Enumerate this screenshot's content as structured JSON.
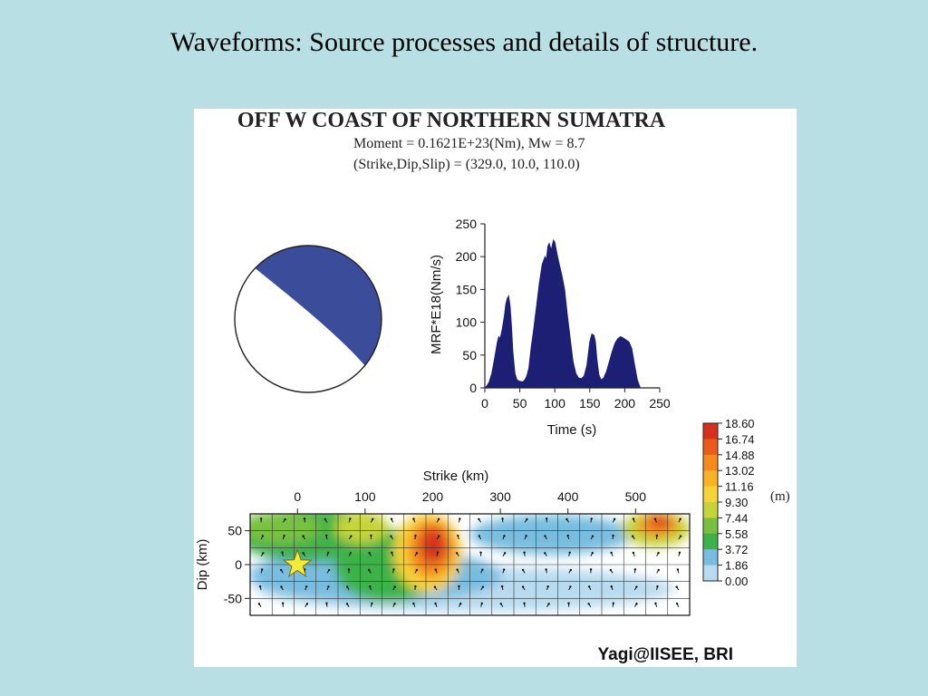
{
  "slide": {
    "title": "Waveforms:   Source processes and details of structure."
  },
  "figure": {
    "title": "OFF W COAST OF NORTHERN SUMATRA",
    "moment_line": "Moment = 0.1621E+23(Nm), Mw = 8.7",
    "mechanism_line": "(Strike,Dip,Slip) = (329.0, 10.0,  110.0)",
    "credit": "Yagi@IISEE, BRI",
    "colors": {
      "mechanism": "#3b4c9a",
      "mrf_fill": "#1c1f73"
    }
  },
  "chart_data": [
    {
      "type": "area",
      "name": "moment-rate-function",
      "xlabel": "Time (s)",
      "ylabel": "MRF*E18(Nm/s)",
      "xlim": [
        0,
        250
      ],
      "ylim": [
        0,
        250
      ],
      "xticks": [
        0,
        50,
        100,
        150,
        200,
        250
      ],
      "yticks": [
        0,
        50,
        100,
        150,
        200,
        250
      ],
      "x": [
        0,
        3,
        6,
        10,
        14,
        18,
        20,
        22,
        25,
        28,
        30,
        32,
        34,
        36,
        38,
        40,
        43,
        46,
        50,
        54,
        57,
        60,
        63,
        66,
        70,
        74,
        78,
        82,
        86,
        88,
        90,
        92,
        95,
        98,
        100,
        103,
        106,
        110,
        114,
        118,
        122,
        126,
        130,
        134,
        138,
        142,
        146,
        150,
        153,
        156,
        158,
        160,
        163,
        166,
        170,
        174,
        178,
        182,
        186,
        190,
        194,
        198,
        202,
        206,
        210,
        214,
        218,
        222
      ],
      "y": [
        0,
        3,
        8,
        22,
        45,
        70,
        78,
        75,
        90,
        110,
        128,
        136,
        140,
        125,
        95,
        55,
        22,
        12,
        10,
        9,
        12,
        18,
        30,
        60,
        90,
        125,
        160,
        188,
        200,
        195,
        215,
        220,
        210,
        225,
        222,
        205,
        190,
        172,
        150,
        110,
        75,
        40,
        22,
        15,
        14,
        18,
        35,
        70,
        82,
        80,
        70,
        45,
        20,
        12,
        15,
        25,
        40,
        55,
        68,
        75,
        78,
        76,
        73,
        70,
        60,
        35,
        12,
        0
      ]
    },
    {
      "type": "heatmap",
      "name": "slip-distribution",
      "xlabel": "Strike (km)",
      "ylabel": "Dip (km)",
      "xticks": [
        0,
        100,
        200,
        300,
        400,
        500
      ],
      "yticks": [
        50,
        0,
        -50
      ],
      "xlim": [
        -70,
        580
      ],
      "ylim": [
        -75,
        75
      ],
      "colorbar": {
        "unit": "(m)",
        "ticks": [
          "18.60",
          "16.74",
          "14.88",
          "13.02",
          "11.16",
          "9.30",
          "7.44",
          "5.58",
          "3.72",
          "1.86",
          "0.00"
        ],
        "colors": [
          "#d7301f",
          "#ea5a18",
          "#f58a1f",
          "#f9b224",
          "#f6d33a",
          "#c6d43a",
          "#79c142",
          "#3db24a",
          "#78bde0",
          "#b9dbef",
          "#ffffff"
        ]
      },
      "hypocenter": {
        "strike_km": 0,
        "dip_km": 0
      }
    }
  ]
}
